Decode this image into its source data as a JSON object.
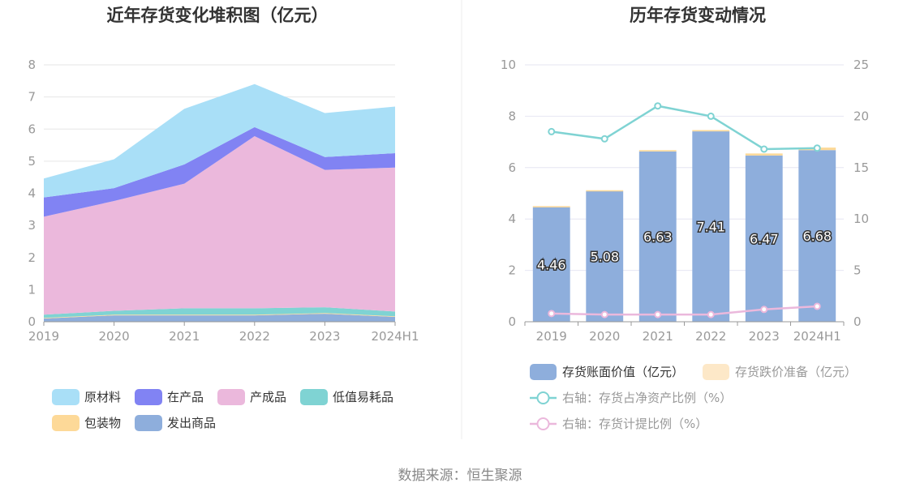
{
  "left_chart": {
    "title": "近年存货变化堆积图（亿元）",
    "legend": [
      {
        "label": "原材料",
        "color": "#a9dff7"
      },
      {
        "label": "在产品",
        "color": "#8183f3"
      },
      {
        "label": "产成品",
        "color": "#ebb8dc"
      },
      {
        "label": "低值易耗品",
        "color": "#7fd3d3"
      },
      {
        "label": "包装物",
        "color": "#fdd998"
      },
      {
        "label": "发出商品",
        "color": "#8eaedc"
      }
    ]
  },
  "right_chart": {
    "title": "历年存货变动情况",
    "legend": [
      {
        "label": "存货账面价值（亿元）",
        "color": "#8eaedc",
        "muted": false
      },
      {
        "label": "存货跌价准备（亿元）",
        "color": "#fde8c8",
        "muted": true
      },
      {
        "label": "右轴：存货占净资产比例（%）",
        "color": "#7fd3d3",
        "muted": true
      },
      {
        "label": "右轴：存货计提比例（%）",
        "color": "#ebb8dc",
        "muted": true
      }
    ]
  },
  "source": "数据来源：恒生聚源",
  "chart_data": [
    {
      "type": "area",
      "stacked": true,
      "title": "近年存货变化堆积图（亿元）",
      "categories": [
        "2019",
        "2020",
        "2021",
        "2022",
        "2023",
        "2024H1"
      ],
      "ylim": [
        0,
        8
      ],
      "yticks": [
        "0",
        "1",
        "2",
        "3",
        "4",
        "5",
        "6",
        "7",
        "8"
      ],
      "grid": true,
      "legend_position": "bottom",
      "series": [
        {
          "name": "发出商品",
          "color": "#8eaedc",
          "values": [
            0.1,
            0.2,
            0.2,
            0.2,
            0.25,
            0.15
          ]
        },
        {
          "name": "包装物",
          "color": "#fdd998",
          "values": [
            0.02,
            0.02,
            0.02,
            0.02,
            0.02,
            0.02
          ]
        },
        {
          "name": "低值易耗品",
          "color": "#7fd3d3",
          "values": [
            0.1,
            0.12,
            0.2,
            0.2,
            0.18,
            0.15
          ]
        },
        {
          "name": "产成品",
          "color": "#ebb8dc",
          "values": [
            3.05,
            3.42,
            3.88,
            5.36,
            4.28,
            4.48
          ]
        },
        {
          "name": "在产品",
          "color": "#8183f3",
          "values": [
            0.6,
            0.4,
            0.6,
            0.28,
            0.4,
            0.45
          ]
        },
        {
          "name": "原材料",
          "color": "#a9dff7",
          "values": [
            0.59,
            0.9,
            1.73,
            1.34,
            1.37,
            1.45
          ]
        }
      ]
    },
    {
      "type": "bar",
      "stacked": true,
      "title": "历年存货变动情况",
      "categories": [
        "2019",
        "2020",
        "2021",
        "2022",
        "2023",
        "2024H1"
      ],
      "ylim": [
        0,
        10
      ],
      "yticks": [
        "0",
        "2",
        "4",
        "6",
        "8",
        "10"
      ],
      "y2lim": [
        0,
        25
      ],
      "y2ticks": [
        "0",
        "5",
        "10",
        "15",
        "20",
        "25"
      ],
      "grid": true,
      "legend_position": "bottom",
      "series": [
        {
          "name": "存货账面价值（亿元）",
          "color": "#8eaedc",
          "axis": "left",
          "type": "bar",
          "values": [
            4.46,
            5.08,
            6.63,
            7.41,
            6.47,
            6.68
          ],
          "labels": [
            "4.46",
            "5.08",
            "6.63",
            "7.41",
            "6.47",
            "6.68"
          ]
        },
        {
          "name": "存货跌价准备（亿元）",
          "color": "#fde8c8",
          "axis": "left",
          "type": "bar",
          "values": [
            0.04,
            0.04,
            0.05,
            0.05,
            0.08,
            0.1
          ]
        },
        {
          "name": "右轴：存货占净资产比例（%）",
          "color": "#7fd3d3",
          "axis": "right",
          "type": "line",
          "values": [
            18.5,
            17.8,
            21.0,
            20.0,
            16.8,
            16.9
          ]
        },
        {
          "name": "右轴：存货计提比例（%）",
          "color": "#ebb8dc",
          "axis": "right",
          "type": "line",
          "values": [
            0.8,
            0.7,
            0.7,
            0.7,
            1.2,
            1.5
          ]
        }
      ]
    }
  ]
}
